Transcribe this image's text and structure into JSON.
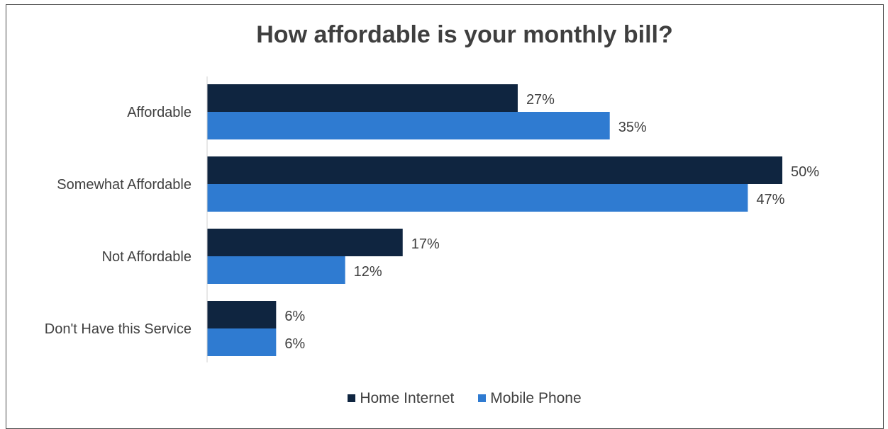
{
  "chart_data": {
    "type": "bar",
    "orientation": "horizontal",
    "title": "How affordable is your monthly bill?",
    "categories": [
      "Affordable",
      "Somewhat Affordable",
      "Not Affordable",
      "Don't Have this Service"
    ],
    "series": [
      {
        "name": "Home Internet",
        "values": [
          27,
          50,
          17,
          6
        ],
        "labels": [
          "27%",
          "50%",
          "17%",
          "6%"
        ],
        "color": "#0f2540"
      },
      {
        "name": "Mobile Phone",
        "values": [
          35,
          47,
          12,
          6
        ],
        "labels": [
          "35%",
          "47%",
          "12%",
          "6%"
        ],
        "color": "#2f7bd1"
      }
    ],
    "xlim": [
      0,
      55
    ],
    "grid": false,
    "legend_position": "bottom"
  }
}
